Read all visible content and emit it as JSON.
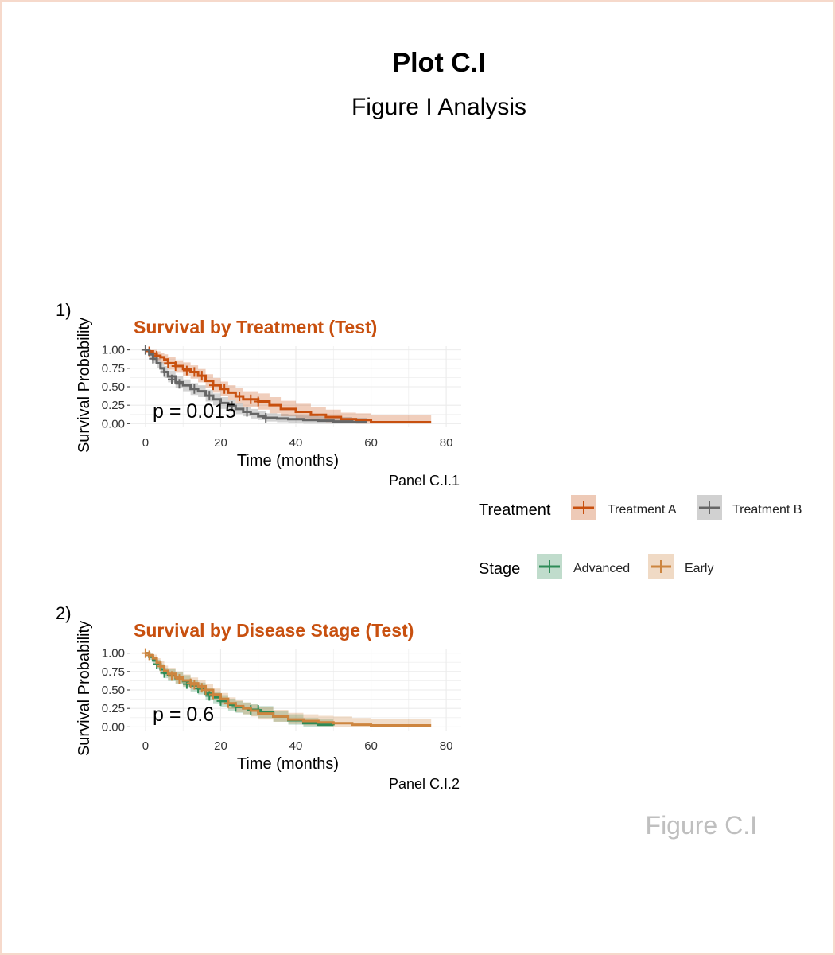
{
  "figure": {
    "title": "Plot C.I",
    "subtitle": "Figure I Analysis",
    "caption": "Figure C.I",
    "border_color": "#f6d9cb"
  },
  "legends": [
    {
      "title": "Treatment",
      "items": [
        {
          "label": "Treatment A",
          "color": "#c8500f"
        },
        {
          "label": "Treatment B",
          "color": "#666666"
        }
      ]
    },
    {
      "title": "Stage",
      "items": [
        {
          "label": "Advanced",
          "color": "#2e8b57"
        },
        {
          "label": "Early",
          "color": "#cd853f"
        }
      ]
    }
  ],
  "chart_data": [
    {
      "type": "line",
      "subtype": "kaplan-meier",
      "tag": "1)",
      "title": "Survival by Treatment (Test)",
      "title_color": "#c8500f",
      "xlabel": "Time (months)",
      "ylabel": "Survival Probability",
      "caption": "Panel C.I.1",
      "annotation": "p = 0.015",
      "xlim": [
        -4,
        84
      ],
      "ylim": [
        -0.05,
        1.05
      ],
      "xticks": [
        0,
        20,
        40,
        60,
        80
      ],
      "yticks": [
        0,
        0.25,
        0.5,
        0.75,
        1
      ],
      "ytick_labels": [
        "0.00",
        "0.25",
        "0.50",
        "0.75",
        "1.00"
      ],
      "grid": true,
      "series": [
        {
          "name": "Treatment A",
          "color": "#c8500f",
          "x": [
            0,
            1,
            2,
            3,
            4,
            5,
            6,
            8,
            10,
            12,
            14,
            16,
            18,
            20,
            22,
            24,
            26,
            28,
            30,
            33,
            36,
            40,
            44,
            48,
            52,
            56,
            60,
            66,
            76
          ],
          "y": [
            1.0,
            0.98,
            0.95,
            0.92,
            0.9,
            0.87,
            0.82,
            0.78,
            0.74,
            0.7,
            0.65,
            0.58,
            0.52,
            0.47,
            0.42,
            0.37,
            0.33,
            0.33,
            0.3,
            0.25,
            0.2,
            0.16,
            0.12,
            0.09,
            0.06,
            0.05,
            0.02,
            0.02,
            0.02
          ],
          "lower": [
            1.0,
            0.95,
            0.9,
            0.86,
            0.82,
            0.79,
            0.73,
            0.69,
            0.65,
            0.61,
            0.56,
            0.48,
            0.42,
            0.37,
            0.32,
            0.27,
            0.23,
            0.22,
            0.19,
            0.14,
            0.1,
            0.07,
            0.04,
            0.02,
            0.01,
            0.0,
            0.0,
            0.0,
            0.0
          ],
          "upper": [
            1.0,
            1.0,
            1.0,
            0.98,
            0.96,
            0.94,
            0.9,
            0.86,
            0.83,
            0.79,
            0.74,
            0.67,
            0.62,
            0.57,
            0.52,
            0.48,
            0.44,
            0.44,
            0.41,
            0.36,
            0.31,
            0.27,
            0.22,
            0.19,
            0.15,
            0.14,
            0.12,
            0.12,
            0.12
          ],
          "censor_x": [
            1,
            3,
            6,
            8,
            11,
            13,
            15,
            18,
            21,
            25,
            28,
            30
          ],
          "censor_y": [
            0.98,
            0.92,
            0.82,
            0.78,
            0.72,
            0.7,
            0.65,
            0.52,
            0.47,
            0.37,
            0.33,
            0.3
          ]
        },
        {
          "name": "Treatment B",
          "color": "#666666",
          "x": [
            0,
            1,
            2,
            3,
            4,
            5,
            6,
            8,
            10,
            12,
            14,
            16,
            18,
            20,
            22,
            24,
            26,
            28,
            30,
            32,
            35,
            38,
            42,
            46,
            50,
            55,
            59
          ],
          "y": [
            1.0,
            0.94,
            0.88,
            0.82,
            0.75,
            0.7,
            0.64,
            0.56,
            0.52,
            0.47,
            0.44,
            0.38,
            0.33,
            0.28,
            0.24,
            0.2,
            0.16,
            0.13,
            0.1,
            0.08,
            0.07,
            0.06,
            0.05,
            0.04,
            0.03,
            0.02,
            0.02
          ],
          "lower": [
            1.0,
            0.89,
            0.82,
            0.75,
            0.68,
            0.62,
            0.56,
            0.48,
            0.44,
            0.39,
            0.36,
            0.3,
            0.25,
            0.2,
            0.16,
            0.13,
            0.1,
            0.07,
            0.05,
            0.03,
            0.02,
            0.01,
            0.0,
            0.0,
            0.0,
            0.0,
            0.0
          ],
          "upper": [
            1.0,
            0.99,
            0.94,
            0.89,
            0.83,
            0.78,
            0.72,
            0.64,
            0.6,
            0.55,
            0.52,
            0.46,
            0.41,
            0.36,
            0.32,
            0.28,
            0.23,
            0.2,
            0.17,
            0.14,
            0.13,
            0.12,
            0.11,
            0.1,
            0.09,
            0.08,
            0.08
          ],
          "censor_x": [
            0,
            2,
            5,
            7,
            9,
            13,
            17,
            23,
            27,
            32
          ],
          "censor_y": [
            1.0,
            0.88,
            0.7,
            0.6,
            0.54,
            0.47,
            0.38,
            0.24,
            0.16,
            0.08
          ]
        }
      ]
    },
    {
      "type": "line",
      "subtype": "kaplan-meier",
      "tag": "2)",
      "title": "Survival by Disease Stage (Test)",
      "title_color": "#c8500f",
      "xlabel": "Time (months)",
      "ylabel": "Survival Probability",
      "caption": "Panel C.I.2",
      "annotation": "p = 0.6",
      "xlim": [
        -4,
        84
      ],
      "ylim": [
        -0.05,
        1.05
      ],
      "xticks": [
        0,
        20,
        40,
        60,
        80
      ],
      "yticks": [
        0,
        0.25,
        0.5,
        0.75,
        1
      ],
      "ytick_labels": [
        "0.00",
        "0.25",
        "0.50",
        "0.75",
        "1.00"
      ],
      "grid": true,
      "series": [
        {
          "name": "Advanced",
          "color": "#2e8b57",
          "x": [
            0,
            1,
            2,
            3,
            4,
            5,
            6,
            8,
            10,
            12,
            14,
            16,
            18,
            20,
            22,
            24,
            26,
            28,
            30,
            34,
            38,
            42,
            46,
            50
          ],
          "y": [
            1.0,
            0.95,
            0.9,
            0.85,
            0.78,
            0.73,
            0.7,
            0.66,
            0.62,
            0.56,
            0.52,
            0.45,
            0.4,
            0.35,
            0.3,
            0.27,
            0.25,
            0.23,
            0.2,
            0.14,
            0.09,
            0.05,
            0.03,
            0.02
          ],
          "lower": [
            1.0,
            0.91,
            0.85,
            0.79,
            0.71,
            0.66,
            0.62,
            0.58,
            0.54,
            0.48,
            0.44,
            0.37,
            0.32,
            0.27,
            0.22,
            0.19,
            0.17,
            0.15,
            0.12,
            0.07,
            0.03,
            0.0,
            0.0,
            0.0
          ],
          "upper": [
            1.0,
            0.99,
            0.95,
            0.91,
            0.85,
            0.8,
            0.78,
            0.74,
            0.7,
            0.64,
            0.6,
            0.53,
            0.48,
            0.43,
            0.38,
            0.35,
            0.33,
            0.31,
            0.28,
            0.22,
            0.17,
            0.12,
            0.1,
            0.08
          ],
          "censor_x": [
            3,
            5,
            11,
            14,
            17,
            20,
            24,
            28,
            30
          ],
          "censor_y": [
            0.85,
            0.73,
            0.58,
            0.52,
            0.42,
            0.35,
            0.27,
            0.23,
            0.23
          ]
        },
        {
          "name": "Early",
          "color": "#cd853f",
          "x": [
            0,
            1,
            2,
            3,
            4,
            5,
            6,
            8,
            10,
            12,
            14,
            16,
            18,
            20,
            22,
            24,
            26,
            28,
            30,
            34,
            38,
            42,
            46,
            50,
            55,
            60,
            66,
            76
          ],
          "y": [
            1.0,
            0.97,
            0.93,
            0.87,
            0.82,
            0.76,
            0.72,
            0.67,
            0.63,
            0.59,
            0.55,
            0.5,
            0.44,
            0.38,
            0.32,
            0.28,
            0.25,
            0.22,
            0.18,
            0.14,
            0.1,
            0.08,
            0.06,
            0.05,
            0.03,
            0.02,
            0.02,
            0.02
          ],
          "lower": [
            1.0,
            0.93,
            0.88,
            0.81,
            0.75,
            0.69,
            0.64,
            0.59,
            0.55,
            0.51,
            0.47,
            0.42,
            0.36,
            0.3,
            0.24,
            0.2,
            0.17,
            0.14,
            0.1,
            0.07,
            0.04,
            0.02,
            0.01,
            0.0,
            0.0,
            0.0,
            0.0,
            0.0
          ],
          "upper": [
            1.0,
            1.0,
            0.98,
            0.93,
            0.89,
            0.83,
            0.8,
            0.75,
            0.71,
            0.67,
            0.63,
            0.58,
            0.52,
            0.46,
            0.4,
            0.36,
            0.33,
            0.3,
            0.27,
            0.23,
            0.19,
            0.17,
            0.15,
            0.14,
            0.12,
            0.11,
            0.11,
            0.11
          ],
          "censor_x": [
            0,
            1,
            4,
            7,
            9,
            12,
            13,
            15,
            16,
            18,
            22
          ],
          "censor_y": [
            1.0,
            0.97,
            0.82,
            0.69,
            0.65,
            0.59,
            0.57,
            0.53,
            0.5,
            0.44,
            0.32
          ]
        }
      ]
    }
  ]
}
